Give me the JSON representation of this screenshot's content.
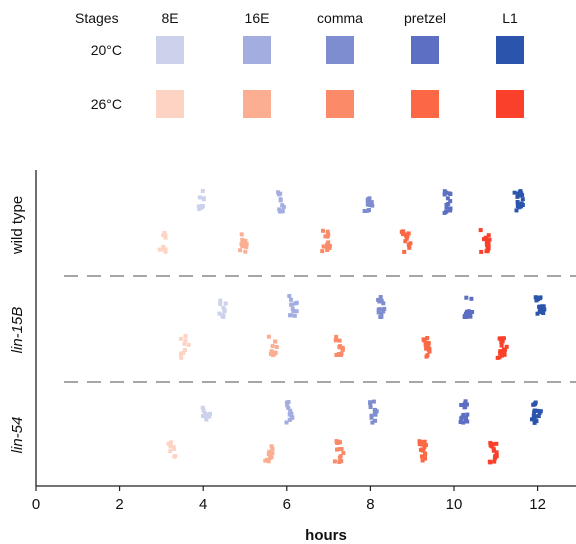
{
  "chart_data": {
    "type": "scatter",
    "xlabel": "hours",
    "xlim": [
      0,
      13
    ],
    "x_ticks": [
      "0",
      "2",
      "4",
      "6",
      "8",
      "10",
      "12"
    ],
    "x_tick_values": [
      0,
      2,
      4,
      6,
      8,
      10,
      12
    ],
    "legend": {
      "header": "Stages",
      "stages": [
        "8E",
        "16E",
        "comma",
        "pretzel",
        "L1"
      ],
      "conditions": [
        {
          "label": "20°C",
          "colors": [
            "#ccd2ec",
            "#a3ade0",
            "#7e8dd0",
            "#5d6fc2",
            "#2b55ad"
          ]
        },
        {
          "label": "26°C",
          "colors": [
            "#fdd4c4",
            "#fcae93",
            "#fb8a68",
            "#fb6845",
            "#fa3f2a"
          ]
        }
      ]
    },
    "groups": [
      {
        "label": "wild type",
        "italic": false,
        "series": [
          {
            "condition": "20°C",
            "stage_times": [
              4.0,
              5.9,
              8.0,
              9.9,
              11.6
            ]
          },
          {
            "condition": "26°C",
            "stage_times": [
              3.1,
              5.0,
              7.0,
              8.9,
              10.8
            ]
          }
        ]
      },
      {
        "label": "lin-15B",
        "italic": true,
        "series": [
          {
            "condition": "20°C",
            "stage_times": [
              4.5,
              6.2,
              8.3,
              10.4,
              12.1
            ]
          },
          {
            "condition": "26°C",
            "stage_times": [
              3.6,
              5.7,
              7.3,
              9.4,
              11.2
            ]
          }
        ]
      },
      {
        "label": "lin-54",
        "italic": true,
        "series": [
          {
            "condition": "20°C",
            "stage_times": [
              4.1,
              6.1,
              8.1,
              10.3,
              12.0
            ]
          },
          {
            "condition": "26°C",
            "stage_times": [
              3.3,
              5.6,
              7.3,
              9.3,
              11.0
            ]
          }
        ]
      }
    ]
  }
}
